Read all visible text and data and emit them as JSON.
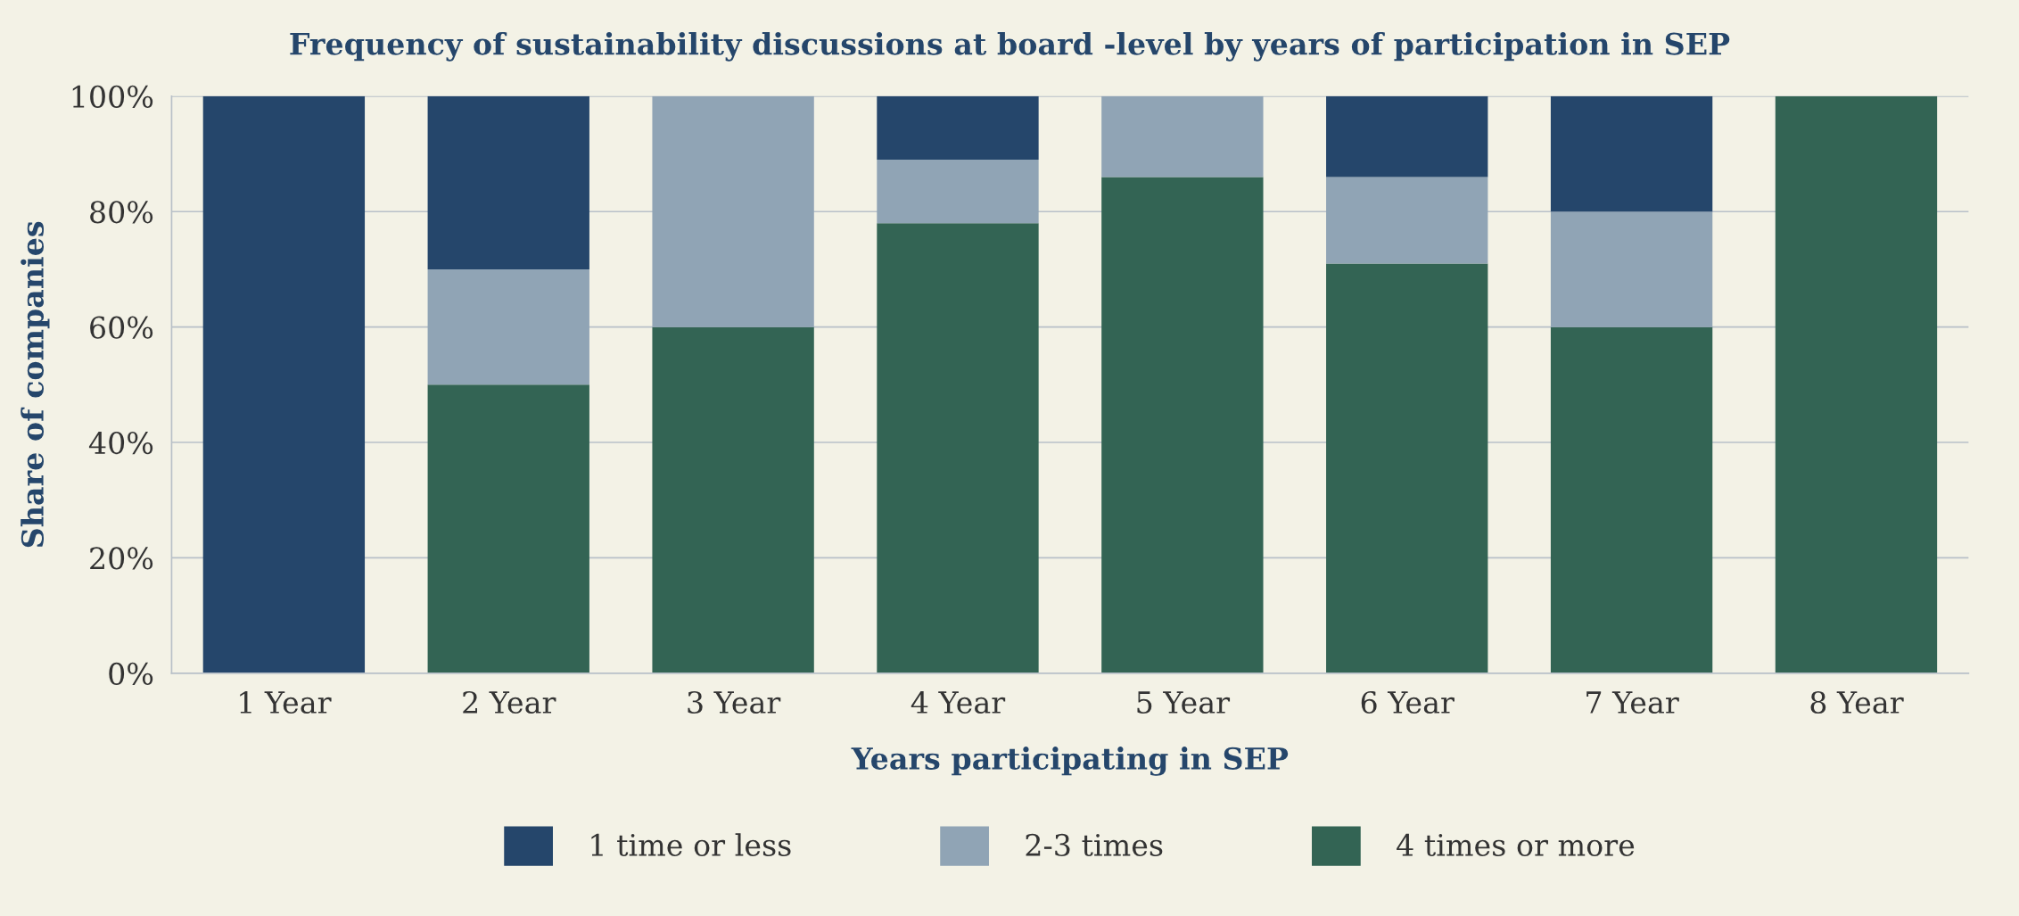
{
  "chart_data": {
    "type": "bar",
    "title": "Frequency of sustainability discussions at board -level by years of participation in SEP",
    "xlabel": "Years participating in SEP",
    "ylabel": "Share of companies",
    "categories": [
      "1 Year",
      "2 Year",
      "3 Year",
      "4 Year",
      "5 Year",
      "6 Year",
      "7 Year",
      "8 Year"
    ],
    "stacked": true,
    "series": [
      {
        "name": "4 times or more",
        "color": "#336454",
        "values": [
          0,
          50,
          60,
          78,
          86,
          71,
          60,
          100
        ]
      },
      {
        "name": "2-3 times",
        "color": "#90a4b5",
        "values": [
          0,
          20,
          40,
          11,
          14,
          15,
          20,
          0
        ]
      },
      {
        "name": "1 time or less",
        "color": "#25466b",
        "values": [
          100,
          30,
          0,
          11,
          0,
          14,
          20,
          0
        ]
      }
    ],
    "ylim": [
      0,
      100
    ],
    "yticks": [
      {
        "value": 0,
        "label": "0%"
      },
      {
        "value": 20,
        "label": "20%"
      },
      {
        "value": 40,
        "label": "40%"
      },
      {
        "value": 60,
        "label": "60%"
      },
      {
        "value": 80,
        "label": "80%"
      },
      {
        "value": 100,
        "label": "100%"
      }
    ],
    "grid": "y",
    "legend": "bottom"
  }
}
